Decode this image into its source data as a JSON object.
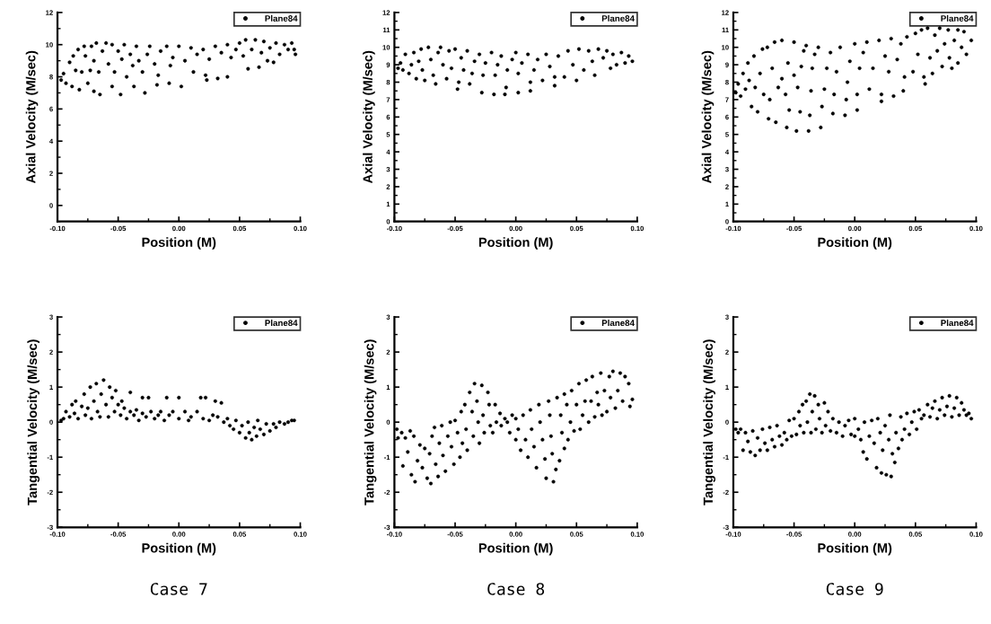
{
  "chart_data": [
    {
      "type": "scatter",
      "xlabel": "Position (M)",
      "ylabel": "Axial Velocity (M/sec)",
      "legend": "top right",
      "marker": "circle",
      "xlim": [
        -0.1,
        0.1
      ],
      "xticks": [
        {
          "value": -0.1,
          "label": "-0.10"
        },
        {
          "value": -0.05,
          "label": "-0.05"
        },
        {
          "value": 0,
          "label": "0.00"
        },
        {
          "value": 0.05,
          "label": "0.05"
        },
        {
          "value": 0.1,
          "label": "0.10"
        }
      ],
      "ylim": [
        -1,
        12
      ],
      "yticks": [
        0,
        2,
        4,
        6,
        8,
        10,
        12
      ],
      "x": [
        -0.097,
        -0.095,
        -0.093,
        -0.09,
        -0.088,
        -0.087,
        -0.085,
        -0.083,
        -0.082,
        -0.08,
        -0.078,
        -0.077,
        -0.075,
        -0.073,
        -0.072,
        -0.07,
        -0.07,
        -0.068,
        -0.066,
        -0.065,
        -0.063,
        -0.06,
        -0.058,
        -0.055,
        -0.055,
        -0.053,
        -0.05,
        -0.048,
        -0.047,
        -0.045,
        -0.043,
        -0.04,
        -0.038,
        -0.037,
        -0.035,
        -0.033,
        -0.03,
        -0.028,
        -0.026,
        -0.024,
        -0.02,
        -0.018,
        -0.017,
        -0.015,
        -0.01,
        -0.008,
        -0.007,
        -0.005,
        0.0,
        0.002,
        0.005,
        0.01,
        0.012,
        0.015,
        0.02,
        0.022,
        0.023,
        0.025,
        0.03,
        0.032,
        0.035,
        0.04,
        0.04,
        0.043,
        0.047,
        0.05,
        0.053,
        0.055,
        0.057,
        0.06,
        0.063,
        0.066,
        0.068,
        0.07,
        0.073,
        0.075,
        0.078,
        0.08,
        0.083,
        0.087,
        0.09,
        0.093,
        0.095,
        0.096
      ],
      "series": [
        {
          "name": "Plane84",
          "color": "#000000",
          "values": [
            7.8,
            8.2,
            7.6,
            8.9,
            7.4,
            9.3,
            8.4,
            9.7,
            7.2,
            8.3,
            9.9,
            9.3,
            7.6,
            8.4,
            9.9,
            7.1,
            9.0,
            10.1,
            8.3,
            6.9,
            9.6,
            10.1,
            8.8,
            10.0,
            7.4,
            8.3,
            9.6,
            6.9,
            9.1,
            10.0,
            8.0,
            9.4,
            8.7,
            7.4,
            9.9,
            9.0,
            8.3,
            7.0,
            9.4,
            9.9,
            8.8,
            7.5,
            8.1,
            9.6,
            9.9,
            7.6,
            8.7,
            9.2,
            9.9,
            7.4,
            9.0,
            9.8,
            8.3,
            9.4,
            9.7,
            8.1,
            7.8,
            9.1,
            9.9,
            7.9,
            9.5,
            10.0,
            8.0,
            9.2,
            9.7,
            10.1,
            9.3,
            10.3,
            8.5,
            9.7,
            10.3,
            8.6,
            9.5,
            10.2,
            9.0,
            9.8,
            8.9,
            10.1,
            9.4,
            10.0,
            9.7,
            10.1,
            9.7,
            9.4
          ]
        }
      ]
    },
    {
      "type": "scatter",
      "xlabel": "Position (M)",
      "ylabel": "Axial Velocity (M/sec)",
      "legend": "top right",
      "marker": "circle",
      "xlim": [
        -0.1,
        0.1
      ],
      "xticks": [
        {
          "value": -0.1,
          "label": "-0.10"
        },
        {
          "value": -0.05,
          "label": "-0.05"
        },
        {
          "value": 0,
          "label": "0.00"
        },
        {
          "value": 0.05,
          "label": "0.05"
        },
        {
          "value": 0.1,
          "label": "0.10"
        }
      ],
      "ylim": [
        0,
        12
      ],
      "yticks": [
        0,
        1,
        2,
        3,
        4,
        5,
        6,
        7,
        8,
        9,
        10,
        11,
        12
      ],
      "x": [
        -0.097,
        -0.095,
        -0.093,
        -0.091,
        -0.088,
        -0.086,
        -0.084,
        -0.082,
        -0.08,
        -0.078,
        -0.077,
        -0.075,
        -0.072,
        -0.07,
        -0.068,
        -0.066,
        -0.064,
        -0.062,
        -0.06,
        -0.057,
        -0.055,
        -0.053,
        -0.05,
        -0.048,
        -0.047,
        -0.045,
        -0.043,
        -0.04,
        -0.038,
        -0.036,
        -0.034,
        -0.03,
        -0.028,
        -0.027,
        -0.025,
        -0.02,
        -0.018,
        -0.017,
        -0.015,
        -0.012,
        -0.009,
        -0.008,
        -0.007,
        -0.003,
        0.0,
        0.002,
        0.002,
        0.005,
        0.01,
        0.012,
        0.012,
        0.015,
        0.018,
        0.022,
        0.025,
        0.028,
        0.032,
        0.032,
        0.035,
        0.04,
        0.043,
        0.047,
        0.05,
        0.052,
        0.056,
        0.06,
        0.063,
        0.065,
        0.068,
        0.072,
        0.075,
        0.078,
        0.08,
        0.083,
        0.087,
        0.09,
        0.093,
        0.096
      ],
      "series": [
        {
          "name": "Plane84",
          "color": "#000000",
          "values": [
            8.8,
            9.1,
            8.7,
            9.6,
            8.5,
            9.0,
            9.7,
            8.2,
            9.2,
            9.9,
            8.7,
            8.1,
            10.0,
            9.3,
            8.4,
            7.9,
            9.7,
            10.0,
            9.0,
            8.2,
            9.8,
            8.8,
            9.9,
            7.6,
            8.0,
            9.4,
            8.7,
            9.8,
            7.9,
            8.5,
            9.2,
            9.6,
            7.4,
            8.4,
            9.1,
            9.7,
            7.3,
            8.4,
            9.0,
            9.5,
            7.3,
            7.7,
            8.7,
            9.3,
            9.7,
            7.4,
            8.5,
            9.1,
            9.6,
            7.5,
            8.0,
            8.7,
            9.3,
            8.1,
            9.6,
            8.9,
            7.8,
            8.3,
            9.5,
            8.3,
            9.8,
            9.0,
            8.1,
            9.9,
            8.7,
            9.8,
            9.2,
            8.4,
            9.9,
            9.4,
            9.8,
            8.8,
            9.6,
            9.0,
            9.7,
            9.1,
            9.5,
            9.2
          ]
        }
      ]
    },
    {
      "type": "scatter",
      "xlabel": "Position (M)",
      "ylabel": "Axial Velocity (M/sec)",
      "legend": "top right",
      "marker": "circle",
      "xlim": [
        -0.1,
        0.1
      ],
      "xticks": [
        {
          "value": -0.1,
          "label": "-0.10"
        },
        {
          "value": -0.05,
          "label": "-0.05"
        },
        {
          "value": 0,
          "label": "0.00"
        },
        {
          "value": 0.05,
          "label": "0.05"
        },
        {
          "value": 0.1,
          "label": "0.10"
        }
      ],
      "ylim": [
        0,
        12
      ],
      "yticks": [
        0,
        1,
        2,
        3,
        4,
        5,
        6,
        7,
        8,
        9,
        10,
        11,
        12
      ],
      "x": [
        -0.098,
        -0.096,
        -0.094,
        -0.092,
        -0.09,
        -0.088,
        -0.087,
        -0.085,
        -0.083,
        -0.082,
        -0.08,
        -0.078,
        -0.076,
        -0.075,
        -0.072,
        -0.071,
        -0.07,
        -0.068,
        -0.066,
        -0.065,
        -0.063,
        -0.06,
        -0.06,
        -0.057,
        -0.056,
        -0.055,
        -0.054,
        -0.05,
        -0.05,
        -0.048,
        -0.047,
        -0.045,
        -0.044,
        -0.042,
        -0.04,
        -0.038,
        -0.037,
        -0.036,
        -0.035,
        -0.033,
        -0.03,
        -0.028,
        -0.027,
        -0.025,
        -0.023,
        -0.02,
        -0.018,
        -0.017,
        -0.015,
        -0.012,
        -0.008,
        -0.007,
        -0.006,
        -0.004,
        0.0,
        0.002,
        0.002,
        0.004,
        0.007,
        0.01,
        0.012,
        0.015,
        0.02,
        0.022,
        0.022,
        0.025,
        0.028,
        0.03,
        0.032,
        0.035,
        0.038,
        0.04,
        0.041,
        0.043,
        0.048,
        0.05,
        0.052,
        0.055,
        0.057,
        0.058,
        0.06,
        0.062,
        0.064,
        0.066,
        0.068,
        0.07,
        0.072,
        0.074,
        0.077,
        0.078,
        0.08,
        0.082,
        0.085,
        0.085,
        0.088,
        0.09,
        0.092,
        0.096
      ],
      "series": [
        {
          "name": "Plane84",
          "color": "#000000",
          "values": [
            7.4,
            7.9,
            7.2,
            8.5,
            7.6,
            9.1,
            8.1,
            6.6,
            9.5,
            7.7,
            6.3,
            8.5,
            9.9,
            7.3,
            10.0,
            5.9,
            7.0,
            8.8,
            10.3,
            5.7,
            7.7,
            10.4,
            8.2,
            7.3,
            5.4,
            9.1,
            6.4,
            10.3,
            8.4,
            5.2,
            7.7,
            6.3,
            8.9,
            9.8,
            10.1,
            5.2,
            6.1,
            7.5,
            8.8,
            9.6,
            10.0,
            5.4,
            6.6,
            7.6,
            8.8,
            9.7,
            6.2,
            7.3,
            8.6,
            10.0,
            6.1,
            7.0,
            8.0,
            9.2,
            10.2,
            6.4,
            7.3,
            8.8,
            9.7,
            10.3,
            7.6,
            8.8,
            10.4,
            6.9,
            7.3,
            9.5,
            8.6,
            10.5,
            7.2,
            9.3,
            10.2,
            7.5,
            8.3,
            10.6,
            8.6,
            10.8,
            9.6,
            11.0,
            8.3,
            7.9,
            11.1,
            9.4,
            8.5,
            10.7,
            9.8,
            11.1,
            8.9,
            10.2,
            11.0,
            9.4,
            8.8,
            10.4,
            11.0,
            9.1,
            10.0,
            10.9,
            9.6,
            10.4
          ]
        }
      ]
    },
    {
      "type": "scatter",
      "xlabel": "Position (M)",
      "ylabel": "Tangential Velocity (M/sec)",
      "legend": "top right",
      "marker": "circle",
      "annotations": [
        "Case 7"
      ],
      "xlim": [
        -0.1,
        0.1
      ],
      "xticks": [
        {
          "value": -0.1,
          "label": "-0.10"
        },
        {
          "value": -0.05,
          "label": "-0.05"
        },
        {
          "value": 0,
          "label": "0.00"
        },
        {
          "value": 0.05,
          "label": "0.05"
        },
        {
          "value": 0.1,
          "label": "0.10"
        }
      ],
      "ylim": [
        -3,
        3
      ],
      "yticks": [
        -3,
        -2,
        -1,
        0,
        1,
        2,
        3
      ],
      "x": [
        -0.097,
        -0.095,
        -0.093,
        -0.09,
        -0.088,
        -0.086,
        -0.085,
        -0.083,
        -0.08,
        -0.078,
        -0.077,
        -0.075,
        -0.073,
        -0.072,
        -0.07,
        -0.068,
        -0.067,
        -0.065,
        -0.064,
        -0.062,
        -0.06,
        -0.058,
        -0.057,
        -0.055,
        -0.053,
        -0.052,
        -0.05,
        -0.048,
        -0.047,
        -0.045,
        -0.043,
        -0.04,
        -0.04,
        -0.037,
        -0.035,
        -0.033,
        -0.03,
        -0.03,
        -0.027,
        -0.025,
        -0.023,
        -0.02,
        -0.017,
        -0.015,
        -0.012,
        -0.01,
        -0.008,
        -0.005,
        0.0,
        0.0,
        0.005,
        0.008,
        0.01,
        0.015,
        0.018,
        0.02,
        0.022,
        0.025,
        0.028,
        0.03,
        0.032,
        0.035,
        0.037,
        0.04,
        0.042,
        0.045,
        0.047,
        0.05,
        0.052,
        0.055,
        0.057,
        0.058,
        0.06,
        0.062,
        0.064,
        0.065,
        0.067,
        0.07,
        0.072,
        0.075,
        0.078,
        0.08,
        0.083,
        0.087,
        0.09,
        0.093,
        0.095
      ],
      "series": [
        {
          "name": "Plane84",
          "color": "#000000",
          "values": [
            0.05,
            0.1,
            0.3,
            0.15,
            0.5,
            0.25,
            0.6,
            0.1,
            0.45,
            0.8,
            0.2,
            0.4,
            1.0,
            0.1,
            0.6,
            1.1,
            0.3,
            0.15,
            0.8,
            1.2,
            0.5,
            0.15,
            1.0,
            0.7,
            0.3,
            0.9,
            0.5,
            0.2,
            0.6,
            0.4,
            0.1,
            0.85,
            0.3,
            0.2,
            0.35,
            0.05,
            0.7,
            0.25,
            0.15,
            0.7,
            0.3,
            0.1,
            0.2,
            0.3,
            0.05,
            0.7,
            0.2,
            0.3,
            0.1,
            0.7,
            0.3,
            0.05,
            0.15,
            0.3,
            0.7,
            0.1,
            0.7,
            0.05,
            0.2,
            0.6,
            0.15,
            0.55,
            0.0,
            0.1,
            -0.1,
            -0.2,
            0.05,
            -0.3,
            -0.1,
            -0.45,
            0.0,
            -0.3,
            -0.5,
            -0.15,
            -0.4,
            0.05,
            -0.2,
            -0.35,
            -0.05,
            -0.25,
            -0.05,
            -0.15,
            0.0,
            -0.05,
            0.0,
            0.05,
            0.05
          ]
        }
      ]
    },
    {
      "type": "scatter",
      "xlabel": "Position (M)",
      "ylabel": "Tangential Velocity (M/sec)",
      "legend": "top right",
      "marker": "circle",
      "annotations": [
        "Case 8"
      ],
      "xlim": [
        -0.1,
        0.1
      ],
      "xticks": [
        {
          "value": -0.1,
          "label": "-0.10"
        },
        {
          "value": -0.05,
          "label": "-0.05"
        },
        {
          "value": 0,
          "label": "0.00"
        },
        {
          "value": 0.05,
          "label": "0.05"
        },
        {
          "value": 0.1,
          "label": "0.10"
        }
      ],
      "ylim": [
        -3,
        3
      ],
      "yticks": [
        -3,
        -2,
        -1,
        0,
        1,
        2,
        3
      ],
      "x": [
        -0.098,
        -0.097,
        -0.094,
        -0.093,
        -0.091,
        -0.089,
        -0.087,
        -0.086,
        -0.084,
        -0.083,
        -0.081,
        -0.079,
        -0.077,
        -0.075,
        -0.073,
        -0.071,
        -0.07,
        -0.069,
        -0.067,
        -0.066,
        -0.064,
        -0.063,
        -0.061,
        -0.06,
        -0.058,
        -0.056,
        -0.054,
        -0.053,
        -0.051,
        -0.05,
        -0.048,
        -0.046,
        -0.045,
        -0.044,
        -0.042,
        -0.041,
        -0.04,
        -0.038,
        -0.036,
        -0.035,
        -0.034,
        -0.032,
        -0.031,
        -0.03,
        -0.028,
        -0.027,
        -0.026,
        -0.023,
        -0.022,
        -0.021,
        -0.019,
        -0.017,
        -0.016,
        -0.013,
        -0.012,
        -0.009,
        -0.007,
        -0.005,
        -0.003,
        0.0,
        0.0,
        0.002,
        0.004,
        0.006,
        0.008,
        0.01,
        0.012,
        0.013,
        0.015,
        0.017,
        0.019,
        0.02,
        0.022,
        0.024,
        0.025,
        0.027,
        0.028,
        0.029,
        0.03,
        0.031,
        0.033,
        0.034,
        0.036,
        0.037,
        0.038,
        0.04,
        0.04,
        0.042,
        0.043,
        0.045,
        0.046,
        0.048,
        0.05,
        0.052,
        0.053,
        0.055,
        0.057,
        0.058,
        0.06,
        0.062,
        0.063,
        0.065,
        0.067,
        0.068,
        0.07,
        0.071,
        0.073,
        0.075,
        0.077,
        0.078,
        0.08,
        0.082,
        0.084,
        0.086,
        0.088,
        0.09,
        0.093,
        0.094,
        0.096
      ],
      "series": [
        {
          "name": "Plane84",
          "color": "#000000",
          "values": [
            -0.2,
            -0.45,
            -0.3,
            -1.25,
            -0.45,
            -0.85,
            -0.25,
            -1.5,
            -0.4,
            -1.7,
            -1.1,
            -0.65,
            -1.3,
            -0.75,
            -1.6,
            -0.9,
            -1.75,
            -0.4,
            -0.15,
            -1.2,
            -1.55,
            -0.6,
            -0.1,
            -0.95,
            -1.4,
            -0.4,
            0.0,
            -0.7,
            -1.2,
            0.05,
            -0.3,
            -1.0,
            0.3,
            -0.6,
            0.5,
            -0.2,
            -0.8,
            0.85,
            0.3,
            -0.4,
            1.1,
            0.6,
            0.0,
            -0.6,
            1.05,
            0.2,
            -0.3,
            0.85,
            0.5,
            -0.1,
            -0.3,
            0.5,
            0.0,
            0.25,
            -0.1,
            0.1,
            0.0,
            -0.3,
            0.2,
            0.1,
            -0.5,
            -0.2,
            -0.8,
            0.2,
            -0.5,
            -1.0,
            0.35,
            -0.2,
            -0.7,
            -1.3,
            0.5,
            0.0,
            -0.5,
            -1.05,
            -1.6,
            0.6,
            0.2,
            -0.4,
            -0.9,
            -1.7,
            -1.35,
            0.7,
            -1.1,
            0.2,
            -0.3,
            0.8,
            -0.75,
            0.5,
            -0.5,
            0.0,
            0.9,
            -0.25,
            0.5,
            1.1,
            -0.2,
            0.2,
            0.6,
            1.2,
            0.0,
            0.6,
            1.3,
            0.15,
            0.85,
            0.5,
            1.4,
            0.2,
            0.9,
            0.3,
            1.3,
            0.7,
            1.45,
            0.4,
            0.9,
            1.4,
            0.6,
            1.3,
            1.1,
            0.45,
            0.65
          ]
        }
      ]
    },
    {
      "type": "scatter",
      "xlabel": "Position (M)",
      "ylabel": "Tangential Velocity (M/sec)",
      "legend": "top right",
      "marker": "circle",
      "annotations": [
        "Case 9"
      ],
      "xlim": [
        -0.1,
        0.1
      ],
      "xticks": [
        {
          "value": -0.1,
          "label": "-0.10"
        },
        {
          "value": -0.05,
          "label": "-0.05"
        },
        {
          "value": 0,
          "label": "0.00"
        },
        {
          "value": 0.05,
          "label": "0.05"
        },
        {
          "value": 0.1,
          "label": "0.10"
        }
      ],
      "ylim": [
        -3,
        3
      ],
      "yticks": [
        -3,
        -2,
        -1,
        0,
        1,
        2,
        3
      ],
      "x": [
        -0.098,
        -0.096,
        -0.094,
        -0.092,
        -0.09,
        -0.088,
        -0.086,
        -0.084,
        -0.082,
        -0.08,
        -0.078,
        -0.076,
        -0.074,
        -0.072,
        -0.07,
        -0.068,
        -0.066,
        -0.064,
        -0.062,
        -0.06,
        -0.058,
        -0.056,
        -0.054,
        -0.052,
        -0.05,
        -0.048,
        -0.046,
        -0.045,
        -0.043,
        -0.042,
        -0.04,
        -0.039,
        -0.037,
        -0.036,
        -0.035,
        -0.033,
        -0.032,
        -0.03,
        -0.029,
        -0.027,
        -0.025,
        -0.024,
        -0.022,
        -0.02,
        -0.018,
        -0.015,
        -0.013,
        -0.01,
        -0.008,
        -0.005,
        -0.003,
        0.0,
        0.0,
        0.003,
        0.005,
        0.007,
        0.008,
        0.01,
        0.012,
        0.014,
        0.016,
        0.018,
        0.019,
        0.021,
        0.022,
        0.023,
        0.025,
        0.026,
        0.028,
        0.029,
        0.03,
        0.031,
        0.033,
        0.034,
        0.036,
        0.038,
        0.039,
        0.041,
        0.043,
        0.045,
        0.047,
        0.049,
        0.051,
        0.053,
        0.055,
        0.057,
        0.06,
        0.062,
        0.064,
        0.066,
        0.068,
        0.07,
        0.072,
        0.074,
        0.076,
        0.078,
        0.08,
        0.082,
        0.084,
        0.086,
        0.088,
        0.09,
        0.092,
        0.094,
        0.096
      ],
      "series": [
        {
          "name": "Plane84",
          "color": "#000000",
          "values": [
            -0.2,
            -0.3,
            -0.2,
            -0.8,
            -0.3,
            -0.55,
            -0.85,
            -0.25,
            -0.95,
            -0.45,
            -0.8,
            -0.2,
            -0.6,
            -0.8,
            -0.15,
            -0.5,
            -0.7,
            -0.1,
            -0.4,
            -0.65,
            -0.3,
            -0.5,
            0.05,
            -0.4,
            0.1,
            -0.35,
            0.3,
            -0.1,
            0.5,
            -0.3,
            0.6,
            0.0,
            0.8,
            -0.3,
            0.3,
            0.75,
            -0.2,
            0.5,
            0.1,
            -0.3,
            0.55,
            -0.1,
            0.3,
            -0.25,
            0.1,
            -0.3,
            0.0,
            -0.4,
            -0.1,
            0.05,
            -0.35,
            0.1,
            -0.4,
            -0.2,
            -0.5,
            -0.85,
            0.0,
            -1.05,
            -0.4,
            0.05,
            -0.6,
            -1.3,
            0.1,
            -0.3,
            -1.45,
            -0.8,
            -0.1,
            -1.5,
            -0.5,
            0.2,
            -1.55,
            -0.9,
            -1.15,
            -0.3,
            -0.75,
            0.15,
            -0.5,
            -0.2,
            0.25,
            -0.35,
            0.0,
            0.3,
            -0.2,
            0.35,
            0.1,
            0.2,
            0.5,
            0.15,
            0.4,
            0.6,
            0.1,
            0.35,
            0.7,
            0.2,
            0.45,
            0.75,
            0.15,
            0.4,
            0.7,
            0.2,
            0.55,
            0.35,
            0.2,
            0.25,
            0.1
          ]
        }
      ]
    }
  ]
}
